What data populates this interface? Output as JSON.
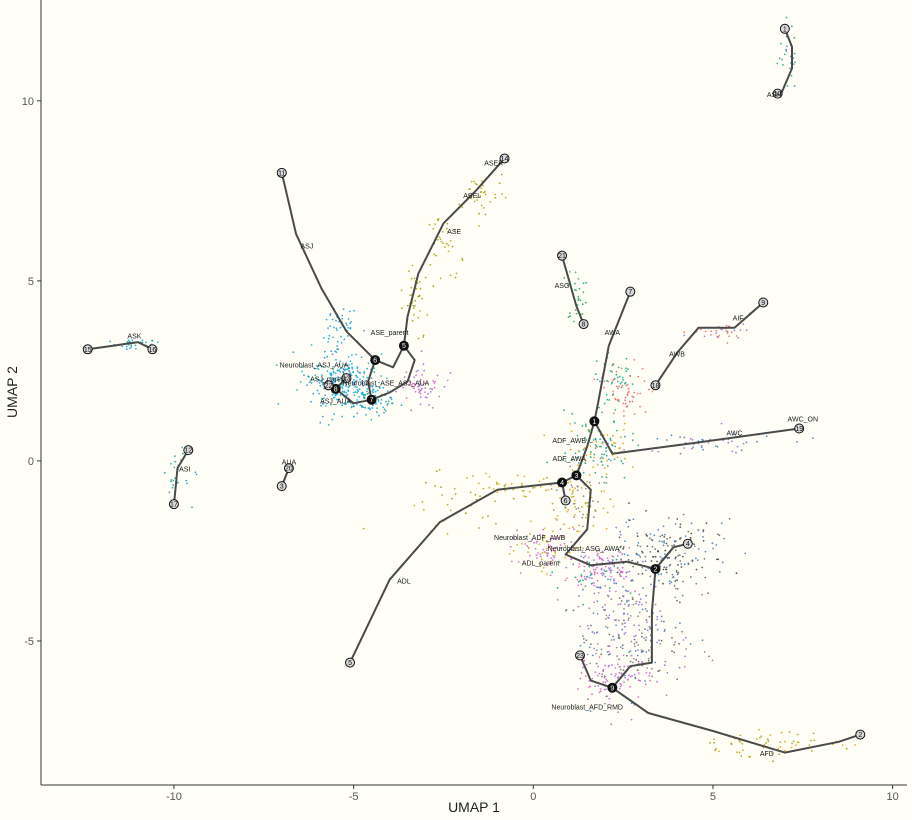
{
  "chart_data": {
    "type": "scatter",
    "title": "",
    "xlabel": "UMAP 1",
    "ylabel": "UMAP 2",
    "xlim": [
      -13.7,
      10.4
    ],
    "ylim": [
      -9.0,
      12.8
    ],
    "xticks": [
      -10,
      -5,
      0,
      5,
      10
    ],
    "yticks": [
      -5,
      0,
      5,
      10
    ],
    "grid": false,
    "legend": "none",
    "background": "#fffff7",
    "trajectory_color": "#4a4a4a",
    "cell_labels": [
      {
        "text": "ASH",
        "x": 6.7,
        "y": 10.1
      },
      {
        "text": "ASER",
        "x": -1.1,
        "y": 8.2
      },
      {
        "text": "ASEL",
        "x": -1.7,
        "y": 7.3
      },
      {
        "text": "ASE",
        "x": -2.2,
        "y": 6.3
      },
      {
        "text": "ASJ",
        "x": -6.3,
        "y": 5.9
      },
      {
        "text": "ASG",
        "x": 0.8,
        "y": 4.8
      },
      {
        "text": "AWA",
        "x": 2.2,
        "y": 3.5
      },
      {
        "text": "AIF",
        "x": 5.7,
        "y": 3.9
      },
      {
        "text": "AWB",
        "x": 4.0,
        "y": 2.9
      },
      {
        "text": "ASK",
        "x": -11.1,
        "y": 3.4
      },
      {
        "text": "ASE_parent",
        "x": -4.0,
        "y": 3.5
      },
      {
        "text": "Neuroblast_ASJ_AUA",
        "x": -6.1,
        "y": 2.6
      },
      {
        "text": "ASJ_parent",
        "x": -5.7,
        "y": 2.2
      },
      {
        "text": "Neuroblast_ASE_ASJ_AUA",
        "x": -4.1,
        "y": 2.1
      },
      {
        "text": "ASJ_AUA",
        "x": -5.5,
        "y": 1.6
      },
      {
        "text": "AWC_ON",
        "x": 7.5,
        "y": 1.1
      },
      {
        "text": "AWC",
        "x": 5.6,
        "y": 0.7
      },
      {
        "text": "ADF_AWB",
        "x": 1.0,
        "y": 0.5
      },
      {
        "text": "AUA",
        "x": -6.8,
        "y": -0.1
      },
      {
        "text": "ADF_AWA",
        "x": 1.0,
        "y": 0.0
      },
      {
        "text": "ASI",
        "x": -9.7,
        "y": -0.3
      },
      {
        "text": "Neuroblast_ADF_AWB",
        "x": -0.1,
        "y": -2.2
      },
      {
        "text": "Neuroblast_ASG_AWA",
        "x": 1.4,
        "y": -2.5
      },
      {
        "text": "ADL_parent",
        "x": 0.2,
        "y": -2.9
      },
      {
        "text": "ADL",
        "x": -3.6,
        "y": -3.4
      },
      {
        "text": "Neuroblast_AFD_RMD",
        "x": 1.5,
        "y": -6.9
      },
      {
        "text": "AFD",
        "x": 6.5,
        "y": -8.2
      }
    ],
    "branch_nodes": [
      {
        "label": "1",
        "x": 1.7,
        "y": 1.1
      },
      {
        "label": "2",
        "x": 3.4,
        "y": -3.0
      },
      {
        "label": "3",
        "x": 1.2,
        "y": -0.4
      },
      {
        "label": "4",
        "x": 0.8,
        "y": -0.6
      },
      {
        "label": "5",
        "x": -3.6,
        "y": 3.2
      },
      {
        "label": "6",
        "x": -4.4,
        "y": 2.8
      },
      {
        "label": "7",
        "x": -4.5,
        "y": 1.7
      },
      {
        "label": "8",
        "x": -5.5,
        "y": 2.0
      },
      {
        "label": "9",
        "x": 2.2,
        "y": -6.3
      }
    ],
    "leaf_nodes": [
      {
        "label": "1",
        "x": 7.0,
        "y": 12.0
      },
      {
        "label": "2",
        "x": 9.1,
        "y": -7.6
      },
      {
        "label": "3",
        "x": -7.0,
        "y": -0.7
      },
      {
        "label": "4",
        "x": 4.3,
        "y": -2.3
      },
      {
        "label": "5",
        "x": -5.1,
        "y": -5.6
      },
      {
        "label": "6",
        "x": 0.9,
        "y": -1.1
      },
      {
        "label": "7",
        "x": 2.7,
        "y": 4.7
      },
      {
        "label": "8",
        "x": 1.4,
        "y": 3.8
      },
      {
        "label": "9",
        "x": 6.4,
        "y": 4.4
      },
      {
        "label": "10",
        "x": 6.8,
        "y": 10.2
      },
      {
        "label": "11",
        "x": -7.0,
        "y": 8.0
      },
      {
        "label": "12",
        "x": -9.6,
        "y": 0.3
      },
      {
        "label": "13",
        "x": -5.2,
        "y": 2.3
      },
      {
        "label": "14",
        "x": -0.8,
        "y": 8.4
      },
      {
        "label": "15",
        "x": -12.4,
        "y": 3.1
      },
      {
        "label": "16",
        "x": -10.6,
        "y": 3.1
      },
      {
        "label": "17",
        "x": -10.0,
        "y": -1.2
      },
      {
        "label": "18",
        "x": 3.4,
        "y": 2.1
      },
      {
        "label": "19",
        "x": 7.4,
        "y": 0.9
      },
      {
        "label": "20",
        "x": -6.8,
        "y": -0.2
      },
      {
        "label": "21",
        "x": 0.8,
        "y": 5.7
      },
      {
        "label": "22",
        "x": -5.7,
        "y": 2.1
      },
      {
        "label": "23",
        "x": 1.3,
        "y": -5.4
      }
    ],
    "trajectories": [
      [
        [
          7.0,
          12.0
        ],
        [
          7.2,
          11.5
        ],
        [
          7.2,
          10.9
        ],
        [
          6.9,
          10.2
        ]
      ],
      [
        [
          -12.4,
          3.1
        ],
        [
          -11.7,
          3.2
        ],
        [
          -11.0,
          3.3
        ],
        [
          -10.6,
          3.1
        ]
      ],
      [
        [
          -9.6,
          0.3
        ],
        [
          -9.9,
          -0.2
        ],
        [
          -10.0,
          -1.2
        ]
      ],
      [
        [
          -6.8,
          -0.2
        ],
        [
          -7.0,
          -0.7
        ]
      ],
      [
        [
          0.8,
          5.7
        ],
        [
          1.0,
          5.0
        ],
        [
          1.2,
          4.3
        ],
        [
          1.4,
          3.8
        ]
      ],
      [
        [
          -7.0,
          8.0
        ],
        [
          -6.6,
          6.3
        ],
        [
          -5.9,
          4.8
        ],
        [
          -5.2,
          3.6
        ],
        [
          -4.4,
          2.8
        ]
      ],
      [
        [
          -0.8,
          8.4
        ],
        [
          -1.6,
          7.5
        ],
        [
          -2.5,
          6.6
        ],
        [
          -3.2,
          5.2
        ],
        [
          -3.5,
          4.0
        ],
        [
          -3.6,
          3.2
        ]
      ],
      [
        [
          -3.6,
          3.2
        ],
        [
          -3.9,
          2.6
        ],
        [
          -4.4,
          2.8
        ]
      ],
      [
        [
          -4.4,
          2.8
        ],
        [
          -4.6,
          2.2
        ],
        [
          -4.5,
          1.7
        ]
      ],
      [
        [
          -3.6,
          3.2
        ],
        [
          -3.3,
          2.8
        ],
        [
          -3.5,
          2.2
        ],
        [
          -4.0,
          1.9
        ],
        [
          -4.5,
          1.7
        ]
      ],
      [
        [
          -4.5,
          1.7
        ],
        [
          -5.0,
          1.6
        ],
        [
          -5.5,
          2.0
        ]
      ],
      [
        [
          -5.5,
          2.0
        ],
        [
          -5.2,
          2.3
        ]
      ],
      [
        [
          -5.5,
          2.0
        ],
        [
          -5.7,
          2.1
        ]
      ],
      [
        [
          1.7,
          1.1
        ],
        [
          1.8,
          1.6
        ],
        [
          2.1,
          3.2
        ],
        [
          2.7,
          4.7
        ]
      ],
      [
        [
          3.4,
          2.1
        ],
        [
          4.0,
          3.0
        ],
        [
          4.6,
          3.7
        ],
        [
          5.6,
          3.7
        ],
        [
          6.4,
          4.4
        ]
      ],
      [
        [
          1.7,
          1.1
        ],
        [
          2.2,
          0.2
        ],
        [
          4.5,
          0.5
        ],
        [
          7.4,
          0.9
        ]
      ],
      [
        [
          1.7,
          1.1
        ],
        [
          1.5,
          0.4
        ],
        [
          1.2,
          -0.4
        ]
      ],
      [
        [
          1.2,
          -0.4
        ],
        [
          0.8,
          -0.6
        ]
      ],
      [
        [
          0.8,
          -0.6
        ],
        [
          0.9,
          -1.1
        ]
      ],
      [
        [
          0.8,
          -0.6
        ],
        [
          -1.0,
          -0.8
        ],
        [
          -2.6,
          -1.7
        ],
        [
          -4.0,
          -3.3
        ],
        [
          -5.1,
          -5.6
        ]
      ],
      [
        [
          1.2,
          -0.4
        ],
        [
          1.6,
          -0.8
        ],
        [
          1.5,
          -1.9
        ],
        [
          0.9,
          -2.6
        ],
        [
          1.6,
          -2.9
        ],
        [
          2.6,
          -2.8
        ],
        [
          3.4,
          -3.0
        ]
      ],
      [
        [
          3.4,
          -3.0
        ],
        [
          3.9,
          -2.4
        ],
        [
          4.3,
          -2.3
        ]
      ],
      [
        [
          3.4,
          -3.0
        ],
        [
          3.3,
          -4.2
        ],
        [
          3.3,
          -5.6
        ],
        [
          2.7,
          -5.7
        ],
        [
          2.2,
          -6.3
        ]
      ],
      [
        [
          1.3,
          -5.4
        ],
        [
          1.6,
          -6.1
        ],
        [
          2.2,
          -6.3
        ]
      ],
      [
        [
          2.2,
          -6.3
        ],
        [
          3.2,
          -7.0
        ],
        [
          5.0,
          -7.5
        ],
        [
          7.0,
          -8.1
        ],
        [
          8.5,
          -7.8
        ],
        [
          9.1,
          -7.6
        ]
      ]
    ],
    "cell_clusters": [
      {
        "x": 7.1,
        "y": 11.3,
        "sx": 0.15,
        "sy": 0.5,
        "n": 25,
        "colors": [
          "#1f9d9d",
          "#3d7fbf"
        ]
      },
      {
        "x": -11.2,
        "y": 3.25,
        "sx": 0.4,
        "sy": 0.06,
        "n": 30,
        "colors": [
          "#00a0d8",
          "#1f9d9d"
        ]
      },
      {
        "x": -9.9,
        "y": -0.4,
        "sx": 0.2,
        "sy": 0.4,
        "n": 25,
        "colors": [
          "#1f9d9d",
          "#00a0d8"
        ]
      },
      {
        "x": -5.4,
        "y": 2.2,
        "sx": 0.5,
        "sy": 0.4,
        "n": 260,
        "colors": [
          "#00a5e0",
          "#00b0c8",
          "#2a8fd0"
        ]
      },
      {
        "x": -4.5,
        "y": 1.7,
        "sx": 0.35,
        "sy": 0.2,
        "n": 80,
        "colors": [
          "#00a5e0",
          "#1f9d9d"
        ]
      },
      {
        "x": -3.2,
        "y": 2.1,
        "sx": 0.35,
        "sy": 0.3,
        "n": 60,
        "colors": [
          "#e05cc8",
          "#8e6dd8"
        ]
      },
      {
        "x": -5.4,
        "y": 3.7,
        "sx": 0.25,
        "sy": 0.3,
        "n": 45,
        "colors": [
          "#00a5e0",
          "#2a8fd0"
        ]
      },
      {
        "x": -1.5,
        "y": 7.4,
        "sx": 0.35,
        "sy": 0.3,
        "n": 35,
        "colors": [
          "#9a9a00",
          "#b5a000"
        ]
      },
      {
        "x": -2.5,
        "y": 6.2,
        "sx": 0.25,
        "sy": 0.4,
        "n": 35,
        "colors": [
          "#b5a000",
          "#9a9a00"
        ]
      },
      {
        "x": -3.3,
        "y": 4.4,
        "sx": 0.2,
        "sy": 0.5,
        "n": 35,
        "colors": [
          "#9a9a00",
          "#b5a000"
        ]
      },
      {
        "x": 1.2,
        "y": 4.6,
        "sx": 0.15,
        "sy": 0.4,
        "n": 30,
        "colors": [
          "#00a86b",
          "#3aa34a"
        ]
      },
      {
        "x": 2.3,
        "y": 2.2,
        "sx": 0.35,
        "sy": 0.35,
        "n": 60,
        "colors": [
          "#00a86b",
          "#1f9d9d",
          "#f06a5c"
        ]
      },
      {
        "x": 2.7,
        "y": 1.8,
        "sx": 0.3,
        "sy": 0.25,
        "n": 35,
        "colors": [
          "#f06a5c",
          "#e8506a"
        ]
      },
      {
        "x": 1.8,
        "y": 0.3,
        "sx": 0.45,
        "sy": 0.45,
        "n": 120,
        "colors": [
          "#1f9d9d",
          "#00a86b",
          "#e8a000"
        ]
      },
      {
        "x": 1.3,
        "y": -1.2,
        "sx": 0.45,
        "sy": 0.55,
        "n": 90,
        "colors": [
          "#e8a000",
          "#7f7f7f",
          "#b5a000"
        ]
      },
      {
        "x": 0.4,
        "y": -2.4,
        "sx": 0.4,
        "sy": 0.3,
        "n": 90,
        "colors": [
          "#e05cc8",
          "#c060d8",
          "#d0b000"
        ]
      },
      {
        "x": 1.9,
        "y": -2.9,
        "sx": 0.4,
        "sy": 0.25,
        "n": 70,
        "colors": [
          "#e05cc8",
          "#8e6dd8"
        ]
      },
      {
        "x": 3.7,
        "y": -2.6,
        "sx": 0.7,
        "sy": 0.5,
        "n": 200,
        "colors": [
          "#3d3d3d",
          "#606060",
          "#3d7fbf"
        ]
      },
      {
        "x": 2.8,
        "y": -4.8,
        "sx": 0.8,
        "sy": 0.9,
        "n": 260,
        "colors": [
          "#606060",
          "#7f7f7f",
          "#8e6dd8",
          "#3d7fbf"
        ]
      },
      {
        "x": 2.3,
        "y": -6.0,
        "sx": 0.5,
        "sy": 0.35,
        "n": 90,
        "colors": [
          "#e05cc8",
          "#c060d8"
        ]
      },
      {
        "x": 1.8,
        "y": -3.3,
        "sx": 0.5,
        "sy": 0.5,
        "n": 80,
        "colors": [
          "#8e6dd8",
          "#e05cc8",
          "#00a86b"
        ]
      },
      {
        "x": 5.3,
        "y": 3.6,
        "sx": 0.6,
        "sy": 0.15,
        "n": 35,
        "colors": [
          "#f06a5c",
          "#8e6dd8"
        ]
      },
      {
        "x": 4.8,
        "y": 0.5,
        "sx": 1.2,
        "sy": 0.15,
        "n": 50,
        "colors": [
          "#3d7fbf",
          "#8e6dd8"
        ]
      },
      {
        "x": -2.0,
        "y": -1.2,
        "sx": 0.8,
        "sy": 0.4,
        "n": 35,
        "colors": [
          "#b5a000",
          "#9a9a00"
        ]
      },
      {
        "x": -0.5,
        "y": -0.7,
        "sx": 0.6,
        "sy": 0.15,
        "n": 40,
        "colors": [
          "#b5a000",
          "#e8a000"
        ]
      },
      {
        "x": 6.5,
        "y": -7.9,
        "sx": 1.2,
        "sy": 0.2,
        "n": 60,
        "colors": [
          "#b5a000",
          "#9a9a00",
          "#e8a000"
        ]
      }
    ]
  }
}
